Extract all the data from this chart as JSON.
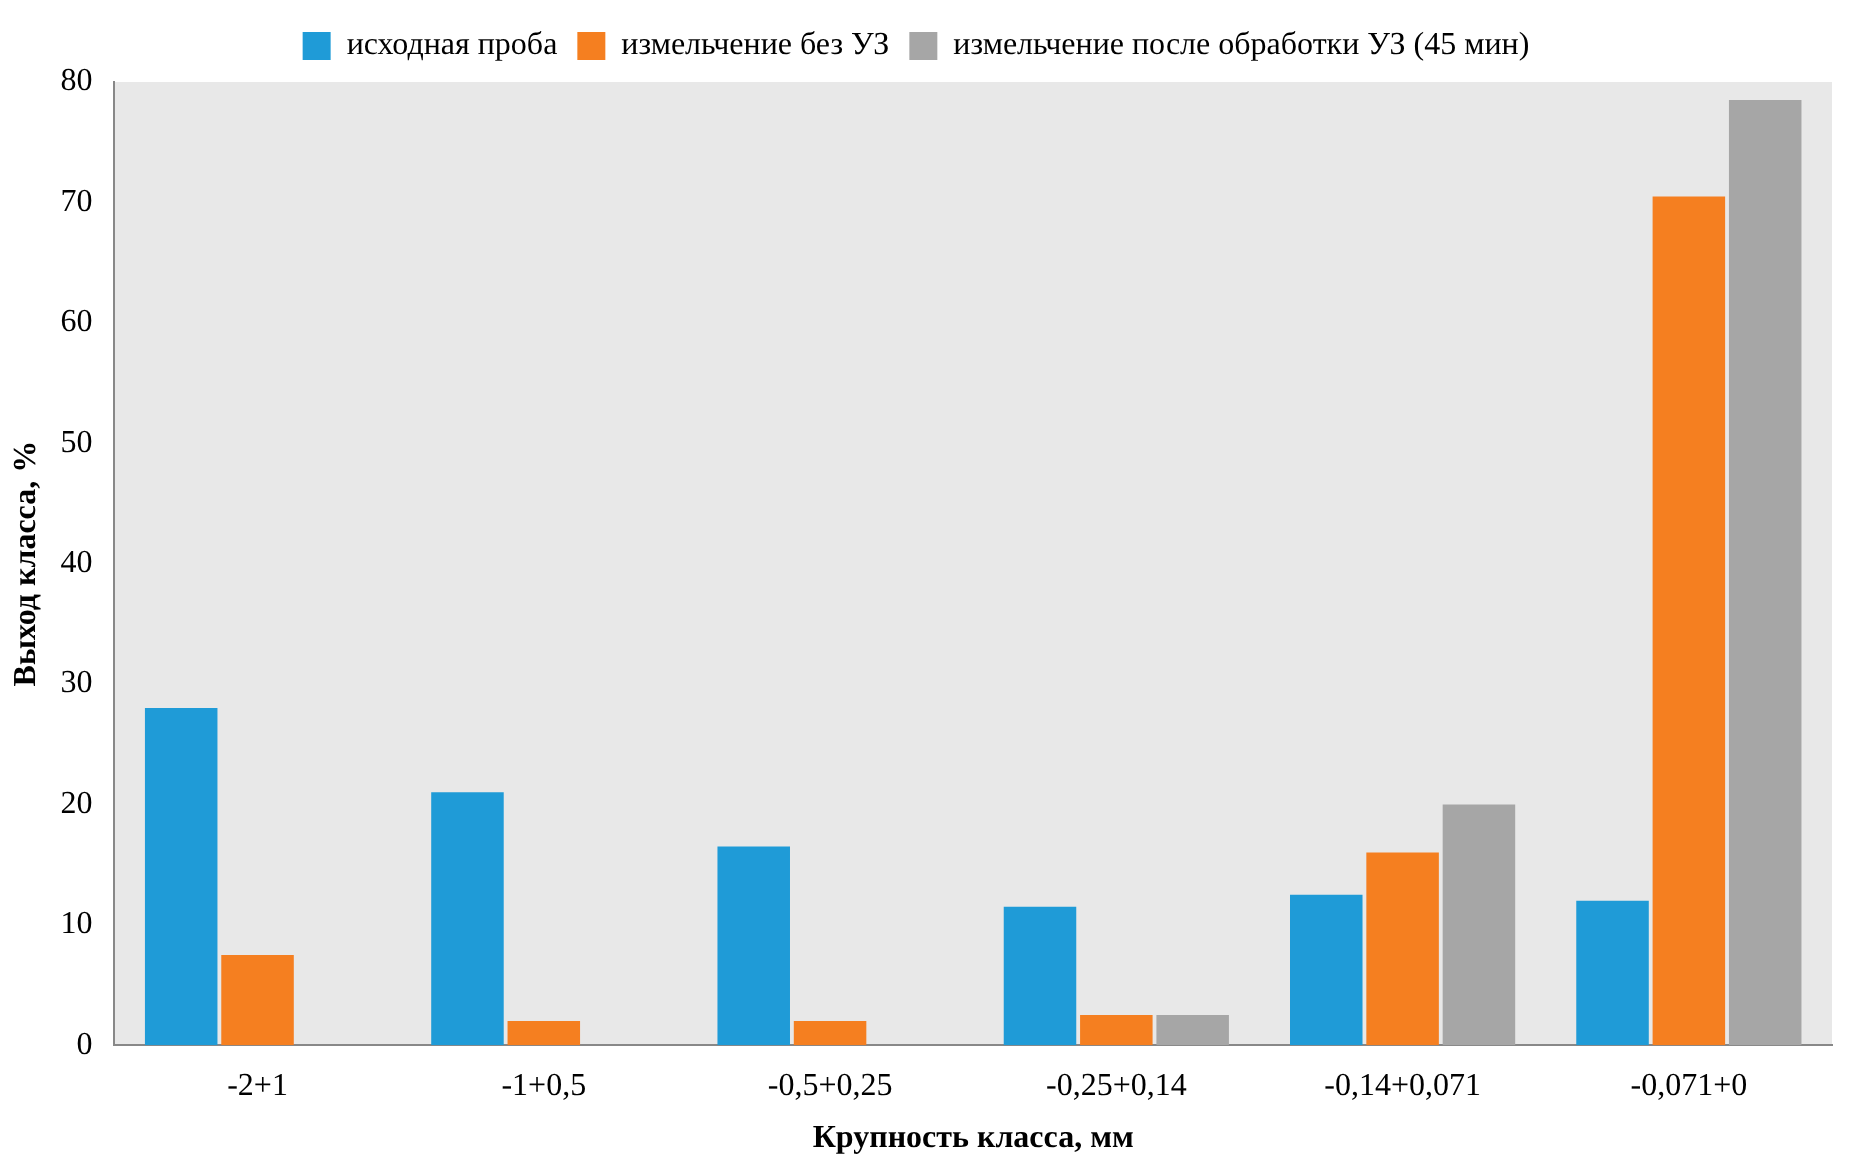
{
  "chart_data": {
    "type": "bar",
    "xlabel": "Крупность класса, мм",
    "ylabel": "Выход класса, %",
    "categories": [
      "-2+1",
      "-1+0,5",
      "-0,5+0,25",
      "-0,25+0,14",
      "-0,14+0,071",
      "-0,071+0"
    ],
    "series": [
      {
        "name": "исходная проба",
        "color": "#1f9bd7",
        "values": [
          28,
          21,
          16.5,
          11.5,
          12.5,
          12
        ]
      },
      {
        "name": "измельчение без УЗ",
        "color": "#f57f20",
        "values": [
          7.5,
          2,
          2,
          2.5,
          16,
          70.5
        ]
      },
      {
        "name": "измельчение после обработки УЗ (45 мин)",
        "color": "#a6a6a6",
        "values": [
          0,
          0,
          0,
          2.5,
          20,
          78.5
        ]
      }
    ],
    "ylim": [
      0,
      80
    ],
    "yticks": [
      0,
      10,
      20,
      30,
      40,
      50,
      60,
      70,
      80
    ],
    "grid": false,
    "legend": "top"
  }
}
